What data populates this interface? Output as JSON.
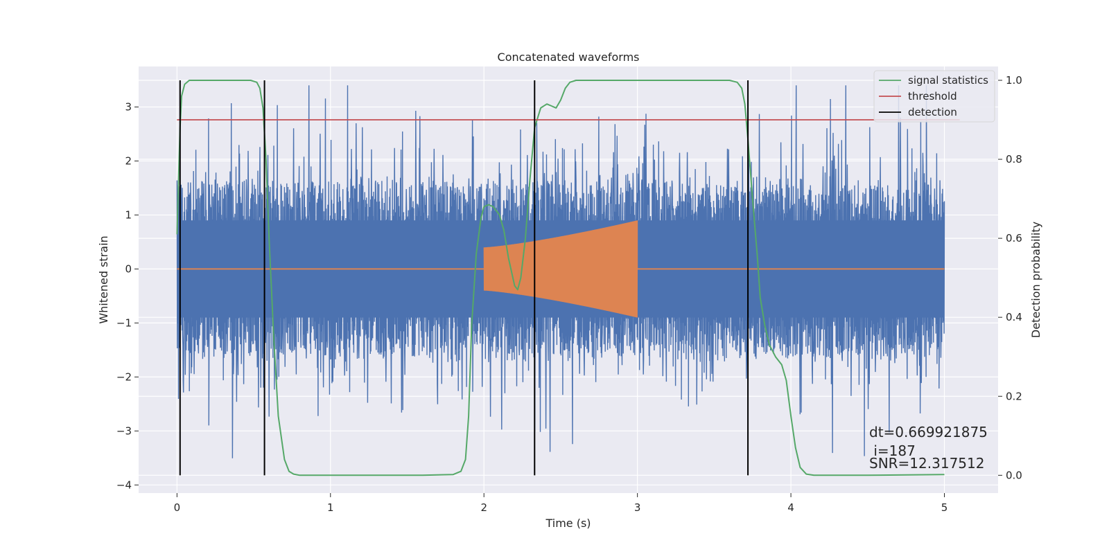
{
  "chart_data": {
    "type": "line",
    "title": "Concatenated waveforms",
    "xlabel": "Time (s)",
    "ylabel": "Whitened strain",
    "y2label": "Detection probability",
    "xlim": [
      -0.25,
      5.35
    ],
    "ylim": [
      -4.15,
      3.75
    ],
    "y2lim": [
      -0.045,
      1.035
    ],
    "x_ticks": [
      0,
      1,
      2,
      3,
      4,
      5
    ],
    "y_ticks": [
      -4,
      -3,
      -2,
      -1,
      0,
      1,
      2,
      3
    ],
    "y2_ticks": [
      0.0,
      0.2,
      0.4,
      0.6,
      0.8,
      1.0
    ],
    "x_tick_labels": [
      "0",
      "1",
      "2",
      "3",
      "4",
      "5"
    ],
    "y_tick_labels": [
      "−4",
      "−3",
      "−2",
      "−1",
      "0",
      "1",
      "2",
      "3"
    ],
    "y2_tick_labels": [
      "0.0",
      "0.2",
      "0.4",
      "0.6",
      "0.8",
      "1.0"
    ],
    "grid": true,
    "legend_position": "top-right",
    "colors": {
      "background": "#eaeaf2",
      "grid": "#ffffff",
      "noise": "#4c72b0",
      "waveform": "#dd8452",
      "signal_statistics": "#55a868",
      "threshold": "#c44e52",
      "detection": "#000000"
    },
    "series": [
      {
        "name": "signal statistics",
        "axis": "right",
        "x": [
          0.0,
          0.01,
          0.02,
          0.03,
          0.05,
          0.08,
          0.12,
          0.2,
          0.3,
          0.4,
          0.48,
          0.52,
          0.54,
          0.56,
          0.58,
          0.6,
          0.63,
          0.66,
          0.7,
          0.73,
          0.76,
          0.8,
          1.0,
          1.2,
          1.4,
          1.6,
          1.8,
          1.85,
          1.88,
          1.9,
          1.92,
          1.95,
          1.98,
          2.0,
          2.03,
          2.06,
          2.1,
          2.13,
          2.16,
          2.2,
          2.22,
          2.24,
          2.27,
          2.3,
          2.33,
          2.37,
          2.41,
          2.44,
          2.47,
          2.5,
          2.53,
          2.56,
          2.6,
          2.65,
          2.7,
          3.0,
          3.3,
          3.6,
          3.65,
          3.68,
          3.7,
          3.72,
          3.75,
          3.78,
          3.8,
          3.83,
          3.86,
          3.9,
          3.94,
          3.97,
          4.0,
          4.03,
          4.06,
          4.1,
          4.15,
          4.2,
          4.5,
          5.0
        ],
        "y": [
          0.61,
          0.75,
          0.88,
          0.96,
          0.99,
          1.0,
          1.0,
          1.0,
          1.0,
          1.0,
          1.0,
          0.995,
          0.98,
          0.93,
          0.8,
          0.6,
          0.35,
          0.15,
          0.04,
          0.01,
          0.003,
          0.0,
          0.0,
          0.0,
          0.0,
          0.0,
          0.002,
          0.01,
          0.04,
          0.15,
          0.38,
          0.56,
          0.65,
          0.68,
          0.685,
          0.68,
          0.66,
          0.62,
          0.55,
          0.48,
          0.47,
          0.5,
          0.6,
          0.75,
          0.88,
          0.93,
          0.94,
          0.935,
          0.93,
          0.95,
          0.98,
          0.995,
          1.0,
          1.0,
          1.0,
          1.0,
          1.0,
          1.0,
          0.995,
          0.98,
          0.94,
          0.85,
          0.7,
          0.56,
          0.45,
          0.38,
          0.33,
          0.3,
          0.28,
          0.24,
          0.15,
          0.07,
          0.02,
          0.003,
          0.0,
          0.0,
          0.0,
          0.002
        ]
      },
      {
        "name": "threshold",
        "axis": "right",
        "x": [
          0.0,
          5.1
        ],
        "y": [
          0.9,
          0.9
        ]
      },
      {
        "name": "detection",
        "axis": "right",
        "vlines_x": [
          0.02,
          0.57,
          2.33,
          3.72
        ],
        "y_range": [
          0.0,
          1.0
        ]
      }
    ],
    "noise_trace": {
      "x_range": [
        0.0,
        5.0
      ],
      "core_envelope": [
        -0.9,
        0.9
      ],
      "approx_peak_range": [
        -3.8,
        3.4
      ]
    },
    "waveform_trace": {
      "x_range": [
        2.0,
        3.0
      ],
      "amplitude_start": 0.4,
      "amplitude_end": 0.9,
      "baseline": 0.0
    },
    "legend": [
      "signal statistics",
      "threshold",
      "detection"
    ],
    "annotations": {
      "dt": "dt=0.669921875",
      "i": " i=187",
      "snr": "SNR=12.317512"
    }
  }
}
